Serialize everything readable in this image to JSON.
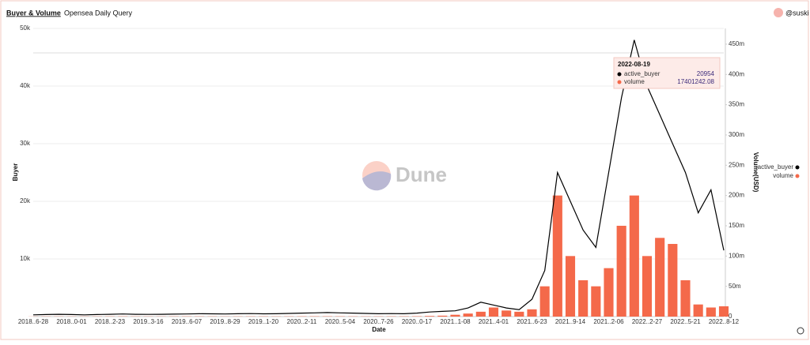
{
  "chart_data": {
    "type": "combo",
    "title": "Buyer & Volume",
    "subtitle": "Opensea Daily Query",
    "author": "@suski",
    "watermark": "Dune",
    "x_label": "Date",
    "y_label": "Buyer",
    "y2_label": "Volume(USD)",
    "categories": [
      "2018..6-28",
      null,
      null,
      "2018..0-01",
      null,
      null,
      "2018..2-23",
      null,
      null,
      "2019..3-16",
      null,
      null,
      "2019..6-07",
      null,
      null,
      "2019..8-29",
      null,
      null,
      "2019..1-20",
      null,
      null,
      "2020..2-11",
      null,
      null,
      "2020..5-04",
      null,
      null,
      "2020..7-26",
      null,
      null,
      "2020..0-17",
      null,
      null,
      "2021..1-08",
      null,
      null,
      "2021..4-01",
      null,
      null,
      "2021..6-23",
      null,
      null,
      "2021..9-14",
      null,
      null,
      "2021..2-06",
      null,
      null,
      "2022..2-27",
      null,
      null,
      "2022..5-21",
      null,
      null,
      "2022..8-12"
    ],
    "series": [
      {
        "name": "active_buyer",
        "type": "line",
        "color": "#000000",
        "values": [
          300,
          350,
          400,
          350,
          300,
          350,
          400,
          450,
          400,
          380,
          400,
          420,
          450,
          500,
          480,
          450,
          500,
          520,
          480,
          500,
          550,
          600,
          650,
          700,
          650,
          600,
          550,
          500,
          520,
          500,
          600,
          800,
          900,
          1000,
          1500,
          2500,
          2000,
          1500,
          1200,
          3000,
          8000,
          25000,
          20000,
          15000,
          12000,
          25000,
          38000,
          48000,
          40000,
          35000,
          30000,
          25000,
          18000,
          22000,
          11500
        ]
      },
      {
        "name": "volume",
        "type": "bar",
        "axis": "y2",
        "color": "#f4694a",
        "values": [
          200000,
          300000,
          300000,
          250000,
          300000,
          300000,
          350000,
          400000,
          350000,
          300000,
          300000,
          350000,
          400000,
          400000,
          350000,
          300000,
          350000,
          400000,
          400000,
          350000,
          400000,
          450000,
          500000,
          500000,
          450000,
          400000,
          400000,
          400000,
          450000,
          500000,
          600000,
          1000000,
          1500000,
          3000000,
          5000000,
          8000000,
          15000000,
          10000000,
          8000000,
          12000000,
          50000000,
          200000000,
          100000000,
          60000000,
          50000000,
          80000000,
          150000000,
          200000000,
          100000000,
          130000000,
          120000000,
          60000000,
          20000000,
          15000000,
          17000000
        ]
      }
    ],
    "ylim": [
      0,
      50000
    ],
    "yticks": [
      {
        "value": 10000,
        "label": "10k"
      },
      {
        "value": 20000,
        "label": "20k"
      },
      {
        "value": 30000,
        "label": "30k"
      },
      {
        "value": 40000,
        "label": "40k"
      },
      {
        "value": 50000,
        "label": "50k"
      }
    ],
    "y2lim": [
      0,
      476000000
    ],
    "y2ticks": [
      0,
      {
        "value": 50000000,
        "label": "50m"
      },
      {
        "value": 100000000,
        "label": "100m"
      },
      {
        "value": 150000000,
        "label": "150m"
      },
      {
        "value": 200000000,
        "label": "200m"
      },
      {
        "value": 250000000,
        "label": "250m"
      },
      {
        "value": 300000000,
        "label": "300m"
      },
      {
        "value": 350000000,
        "label": "350m"
      },
      {
        "value": 400000000,
        "label": "400m"
      },
      {
        "value": 450000000,
        "label": "450m"
      }
    ],
    "grid": true,
    "legend": "right",
    "tooltip": {
      "date": "2022-08-19",
      "values": [
        20954,
        17401242.08
      ]
    }
  }
}
